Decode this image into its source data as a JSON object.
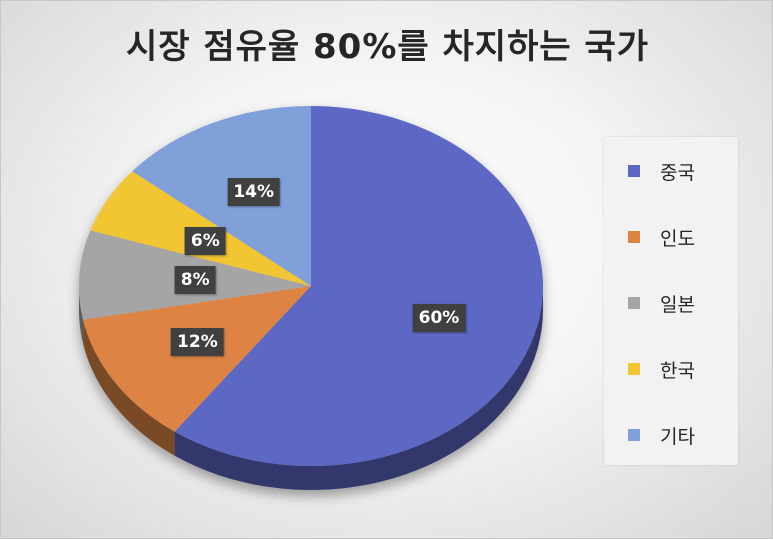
{
  "chart_data": {
    "type": "pie",
    "title": "시장 점유율 80%를 차지하는 국가",
    "categories": [
      "중국",
      "인도",
      "일본",
      "한국",
      "기타"
    ],
    "values": [
      60,
      12,
      8,
      6,
      14
    ],
    "value_labels": [
      "60%",
      "12%",
      "8%",
      "6%",
      "14%"
    ],
    "colors": [
      "#5B67C4",
      "#DD8444",
      "#A5A5A5",
      "#F2C631",
      "#7FA0D8"
    ],
    "legend_position": "right",
    "style": "3d"
  }
}
